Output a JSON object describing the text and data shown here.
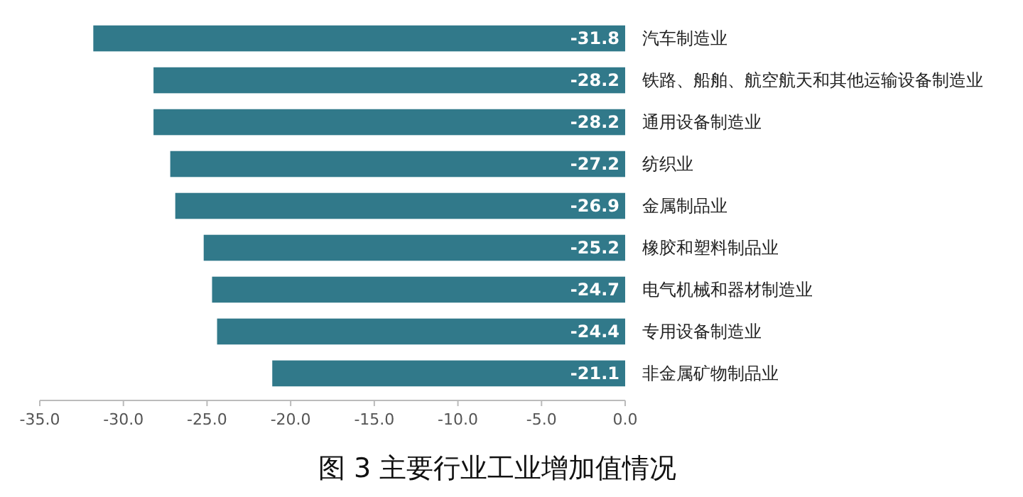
{
  "chart_data": {
    "type": "bar",
    "orientation": "horizontal",
    "title": "图 3  主要行业工业增加值情况",
    "categories": [
      "汽车制造业",
      "铁路、船舶、航空航天和其他运输设备制造业",
      "通用设备制造业",
      "纺织业",
      "金属制品业",
      "橡胶和塑料制品业",
      "电气机械和器材制造业",
      "专用设备制造业",
      "非金属矿物制品业"
    ],
    "values": [
      -31.8,
      -28.2,
      -28.2,
      -27.2,
      -26.9,
      -25.2,
      -24.7,
      -24.4,
      -21.1
    ],
    "color": "#31798a",
    "xlim": [
      -35,
      0
    ],
    "xticks": [
      {
        "value": -35,
        "label": "-35.0"
      },
      {
        "value": -30,
        "label": "-30.0"
      },
      {
        "value": -25,
        "label": "-25.0"
      },
      {
        "value": -20,
        "label": "-20.0"
      },
      {
        "value": -15,
        "label": "-15.0"
      },
      {
        "value": -10,
        "label": "-10.0"
      },
      {
        "value": -5,
        "label": "-5.0"
      },
      {
        "value": 0,
        "label": "0.0"
      }
    ],
    "data_labels": true,
    "grid": false
  }
}
